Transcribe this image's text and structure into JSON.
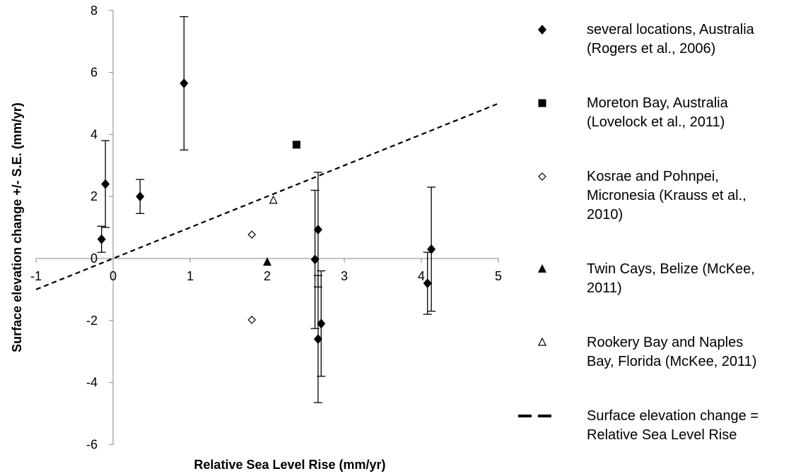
{
  "chart_data": {
    "type": "scatter",
    "title": "",
    "xlabel": "Relative Sea Level Rise (mm/yr)",
    "ylabel": "Surface elevation change +/- S.E. (mm/yr)",
    "xlim": [
      -1,
      5
    ],
    "ylim": [
      -6,
      8
    ],
    "x_ticks": [
      -1,
      0,
      1,
      2,
      3,
      4,
      5
    ],
    "y_ticks": [
      -6,
      -4,
      -2,
      0,
      2,
      4,
      6,
      8
    ],
    "grid": false,
    "legend_position": "right",
    "series": [
      {
        "name": "several locations, Australia (Rogers et al., 2006)",
        "legend_lines": [
          "several locations, Australia",
          "(Rogers et al., 2006)"
        ],
        "marker": "diamond-filled",
        "points": [
          {
            "x": -0.15,
            "y": 0.62,
            "err_low": 0.42,
            "err_high": 0.42
          },
          {
            "x": -0.1,
            "y": 2.4,
            "err_low": 1.4,
            "err_high": 1.4
          },
          {
            "x": 0.35,
            "y": 2.0,
            "err_low": 0.55,
            "err_high": 0.55
          },
          {
            "x": 0.92,
            "y": 5.65,
            "err_low": 2.15,
            "err_high": 2.15
          },
          {
            "x": 2.62,
            "y": -0.03,
            "err_low": 2.23,
            "err_high": 2.23
          },
          {
            "x": 2.66,
            "y": 0.93,
            "err_low": 1.85,
            "err_high": 1.85
          },
          {
            "x": 2.66,
            "y": -2.6,
            "err_low": 2.05,
            "err_high": 2.05
          },
          {
            "x": 2.7,
            "y": -2.1,
            "err_low": 1.7,
            "err_high": 1.7
          },
          {
            "x": 4.08,
            "y": -0.8,
            "err_low": 1.0,
            "err_high": 1.0
          },
          {
            "x": 4.13,
            "y": 0.3,
            "err_low": 2.0,
            "err_high": 2.0
          }
        ]
      },
      {
        "name": "Moreton Bay, Australia (Lovelock et al., 2011)",
        "legend_lines": [
          "Moreton Bay, Australia",
          "(Lovelock et al., 2011)"
        ],
        "marker": "square-filled",
        "points": [
          {
            "x": 2.38,
            "y": 3.67
          }
        ]
      },
      {
        "name": "Kosrae and Pohnpei, Micronesia (Krauss et al., 2010)",
        "legend_lines": [
          "Kosrae and Pohnpei,",
          "Micronesia (Krauss et al.,",
          "2010)"
        ],
        "marker": "diamond-open",
        "points": [
          {
            "x": 1.8,
            "y": 0.77
          },
          {
            "x": 1.8,
            "y": -1.98
          }
        ]
      },
      {
        "name": "Twin Cays, Belize (McKee, 2011)",
        "legend_lines": [
          "Twin Cays, Belize (McKee,",
          "2011)"
        ],
        "marker": "triangle-filled",
        "points": [
          {
            "x": 2.0,
            "y": -0.12
          }
        ]
      },
      {
        "name": "Rookery Bay and Naples Bay, Florida (McKee, 2011)",
        "legend_lines": [
          "Rookery Bay and Naples",
          "Bay, Florida (McKee, 2011)"
        ],
        "marker": "triangle-open",
        "points": [
          {
            "x": 2.08,
            "y": 1.87
          }
        ]
      },
      {
        "name": "Surface elevation change = Relative Sea Level Rise",
        "legend_lines": [
          "Surface elevation change =",
          "Relative Sea Level Rise"
        ],
        "marker": "dashed-line",
        "line": {
          "x": [
            -1,
            5
          ],
          "y": [
            -1,
            5
          ]
        }
      }
    ]
  }
}
